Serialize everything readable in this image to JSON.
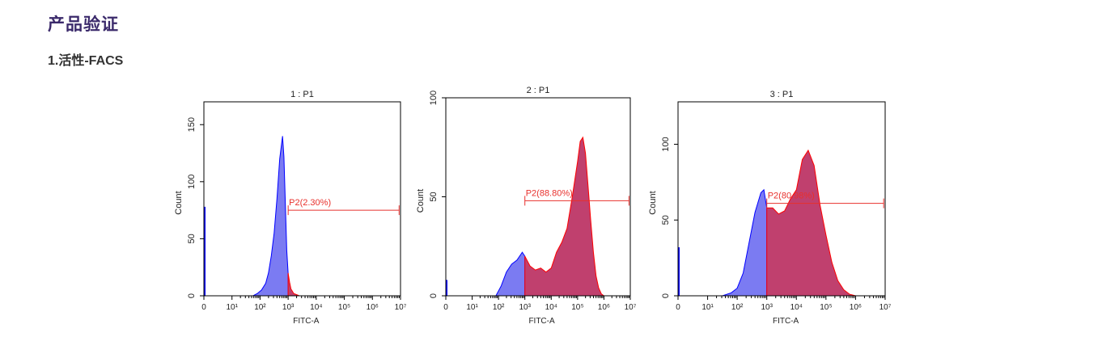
{
  "header": {
    "title": "产品验证",
    "subtitle": "1.活性-FACS"
  },
  "colors": {
    "title": "#3b2a6b",
    "negative_fill": "#7b7bf2",
    "negative_stroke": "#0000ff",
    "positive_fill": "#c0406e",
    "positive_stroke": "#ff0000",
    "gate": "#e8302c",
    "axis": "#000000"
  },
  "chart_data": [
    {
      "type": "area",
      "title": "1 : P1",
      "xlabel": "FITC-A",
      "ylabel": "Count",
      "xscale": "log",
      "x_ticks": [
        "0",
        "10¹",
        "10²",
        "10³",
        "10⁴",
        "10⁵",
        "10⁶",
        "10⁷"
      ],
      "y_ticks": [
        0,
        50,
        100,
        150
      ],
      "ylim": [
        0,
        170
      ],
      "gate": {
        "label": "P2(2.30%)",
        "x_start_decade": 3.0,
        "x_end_decade": 6.95,
        "y": 75
      },
      "histogram": {
        "x_decade": [
          1.75,
          1.9,
          2.05,
          2.2,
          2.3,
          2.4,
          2.5,
          2.6,
          2.7,
          2.8,
          2.85,
          2.9,
          2.95,
          3.0,
          3.05,
          3.1,
          3.2,
          3.3,
          3.4
        ],
        "count": [
          0,
          2,
          5,
          11,
          20,
          35,
          55,
          85,
          120,
          140,
          122,
          80,
          40,
          20,
          12,
          6,
          2,
          1,
          0
        ]
      },
      "zero_spike": 78
    },
    {
      "type": "area",
      "title": "2 : P1",
      "xlabel": "FITC-A",
      "ylabel": "Count",
      "xscale": "log",
      "x_ticks": [
        "0",
        "10¹",
        "10²",
        "10³",
        "10⁴",
        "10⁵",
        "10⁶",
        "10⁷"
      ],
      "y_ticks": [
        0,
        50,
        100
      ],
      "ylim": [
        0,
        100
      ],
      "gate": {
        "label": "P2(88.80%)",
        "x_start_decade": 3.0,
        "x_end_decade": 6.95,
        "y": 48
      },
      "histogram": {
        "x_decade": [
          1.9,
          2.1,
          2.3,
          2.5,
          2.7,
          2.9,
          3.0,
          3.2,
          3.4,
          3.6,
          3.8,
          4.0,
          4.2,
          4.4,
          4.6,
          4.8,
          5.0,
          5.1,
          5.2,
          5.3,
          5.4,
          5.5,
          5.6,
          5.7,
          5.8,
          5.9,
          6.0
        ],
        "count": [
          0,
          5,
          12,
          16,
          18,
          22,
          20,
          15,
          13,
          14,
          12,
          14,
          22,
          27,
          34,
          50,
          68,
          78,
          80,
          72,
          55,
          38,
          22,
          10,
          4,
          1,
          0
        ]
      },
      "zero_spike": 8
    },
    {
      "type": "area",
      "title": "3 : P1",
      "xlabel": "FITC-A",
      "ylabel": "Count",
      "xscale": "log",
      "x_ticks": [
        "0",
        "10¹",
        "10²",
        "10³",
        "10⁴",
        "10⁵",
        "10⁶",
        "10⁷"
      ],
      "y_ticks": [
        0,
        50,
        100
      ],
      "ylim": [
        0,
        128
      ],
      "gate": {
        "label": "P2(80.98%)",
        "x_start_decade": 3.0,
        "x_end_decade": 6.95,
        "y": 61
      },
      "histogram": {
        "x_decade": [
          1.5,
          1.8,
          2.0,
          2.2,
          2.4,
          2.6,
          2.8,
          2.9,
          3.0,
          3.2,
          3.4,
          3.6,
          3.8,
          4.0,
          4.2,
          4.4,
          4.6,
          4.8,
          5.0,
          5.2,
          5.4,
          5.6,
          5.8,
          6.0,
          6.2
        ],
        "count": [
          0,
          2,
          5,
          15,
          35,
          55,
          68,
          70,
          58,
          58,
          54,
          56,
          64,
          70,
          90,
          96,
          86,
          60,
          40,
          22,
          10,
          4,
          1,
          0,
          0
        ]
      },
      "zero_spike": 32
    }
  ]
}
